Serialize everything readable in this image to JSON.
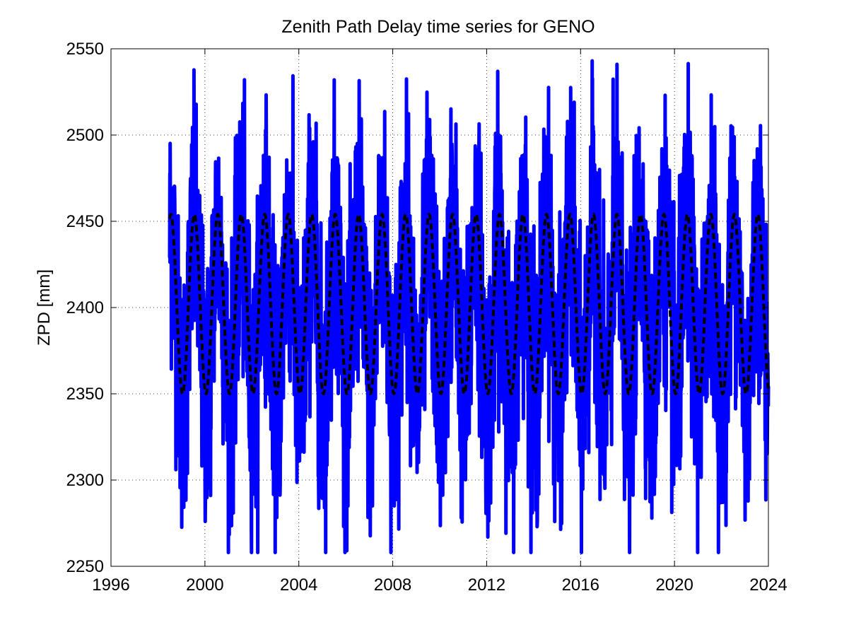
{
  "chart_data": {
    "type": "line",
    "title": "Zenith Path Delay time series for GENO",
    "xlabel": "",
    "ylabel": "ZPD [mm]",
    "xlim": [
      1996,
      2024
    ],
    "ylim": [
      2250,
      2550
    ],
    "x_ticks": [
      "1996",
      "2000",
      "2004",
      "2008",
      "2012",
      "2016",
      "2020",
      "2024"
    ],
    "y_ticks": [
      "2250",
      "2300",
      "2350",
      "2400",
      "2450",
      "2500",
      "2550"
    ],
    "grid": true,
    "colors": {
      "observed": "#0000ff",
      "seasonal_fit": "#000000"
    },
    "series": [
      {
        "style": "solid",
        "x_start": 1998.5,
        "x_end": 2024,
        "seasonal_mean": 2395,
        "seasonal_amplitude": 48,
        "seasonal_peak_month": "July",
        "approx_max": 2543,
        "approx_min": 2258
      },
      {
        "style": "dashed",
        "x_start": 1998.5,
        "x_end": 2024,
        "period_years": 1,
        "mean": 2402,
        "amplitude": 52,
        "peak_fraction_of_year": 0.55
      }
    ]
  }
}
